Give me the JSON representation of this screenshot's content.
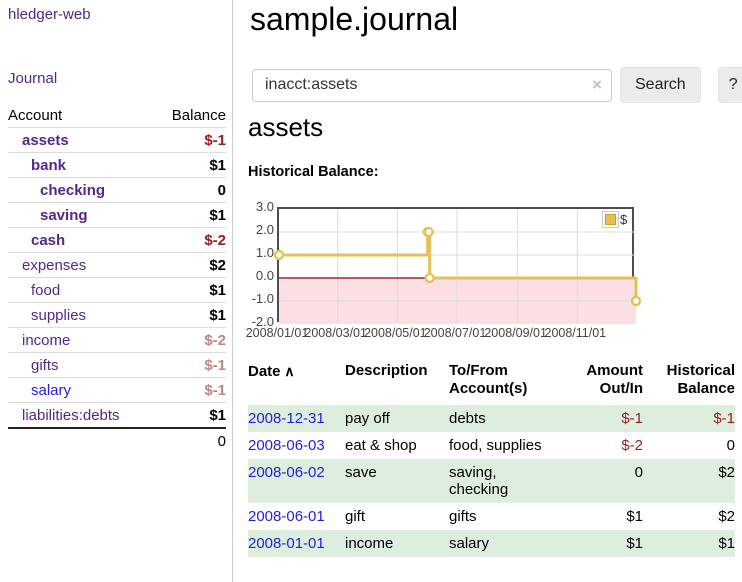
{
  "app": {
    "title": "hledger-web"
  },
  "sidebar": {
    "journal_link": "Journal",
    "accounts_table": {
      "headers": {
        "account": "Account",
        "balance": "Balance"
      },
      "rows": [
        {
          "name": "assets",
          "indent": 1,
          "bold": true,
          "link_color": "purple",
          "balance": "$-1",
          "balance_style": "neg-strong"
        },
        {
          "name": "bank",
          "indent": 2,
          "bold": true,
          "link_color": "purple",
          "balance": "$1",
          "balance_style": "normal"
        },
        {
          "name": "checking",
          "indent": 3,
          "bold": true,
          "link_color": "purple",
          "balance": "0",
          "balance_style": "normal"
        },
        {
          "name": "saving",
          "indent": 3,
          "bold": true,
          "link_color": "purple",
          "balance": "$1",
          "balance_style": "normal"
        },
        {
          "name": "cash",
          "indent": 2,
          "bold": true,
          "link_color": "purple",
          "balance": "$-2",
          "balance_style": "neg-strong"
        },
        {
          "name": "expenses",
          "indent": 1,
          "bold": false,
          "link_color": "purple",
          "balance": "$2",
          "balance_style": "normal"
        },
        {
          "name": "food",
          "indent": 2,
          "bold": false,
          "link_color": "purple",
          "balance": "$1",
          "balance_style": "normal"
        },
        {
          "name": "supplies",
          "indent": 2,
          "bold": false,
          "link_color": "purple",
          "balance": "$1",
          "balance_style": "normal"
        },
        {
          "name": "income",
          "indent": 1,
          "bold": false,
          "link_color": "purple",
          "balance": "$-2",
          "balance_style": "neg-faded"
        },
        {
          "name": "gifts",
          "indent": 2,
          "bold": false,
          "link_color": "purple",
          "balance": "$-1",
          "balance_style": "neg-faded"
        },
        {
          "name": "salary",
          "indent": 2,
          "bold": false,
          "link_color": "blue",
          "balance": "$-1",
          "balance_style": "neg-faded"
        },
        {
          "name": "liabilities:debts",
          "indent": 1,
          "bold": false,
          "link_color": "purple",
          "balance": "$1",
          "balance_style": "normal"
        }
      ],
      "total": "0"
    }
  },
  "header": {
    "title": "sample.journal"
  },
  "search": {
    "value": "inacct:assets",
    "clear_icon": "×",
    "button_label": "Search",
    "help_label": "?"
  },
  "account_page": {
    "heading": "assets",
    "chart_label": "Historical Balance:"
  },
  "chart_data": {
    "type": "line",
    "style": "step",
    "series": [
      {
        "name": "$",
        "color": "#e6c054",
        "points": [
          [
            "2008-01-01",
            1
          ],
          [
            "2008-06-01",
            2
          ],
          [
            "2008-06-02",
            2
          ],
          [
            "2008-06-03",
            0
          ],
          [
            "2008-12-31",
            -1
          ]
        ]
      }
    ],
    "ylim": [
      -2.0,
      3.0
    ],
    "yticks": [
      "3.0",
      "2.0",
      "1.0",
      "0.0",
      "-1.0",
      "-2.0"
    ],
    "xticks": [
      "2008/01/01",
      "2008/03/01",
      "2008/05/01",
      "2008/07/01",
      "2008/09/01",
      "2008/11/01"
    ],
    "xrange": [
      "2008-01-01",
      "2008-12-31"
    ],
    "legend": {
      "label": "$",
      "position": "top-right"
    },
    "grid": true,
    "negative_region_color": "#fbdfe2",
    "zero_line_color": "#8b0000",
    "grid_color": "#dcdcdc",
    "marker": "open-circle"
  },
  "transactions": {
    "sort_icon": "∧",
    "columns": [
      {
        "label": "Date",
        "align": "left",
        "sorted": "asc"
      },
      {
        "label": "Description",
        "align": "left"
      },
      {
        "label": "To/From Account(s)",
        "align": "left"
      },
      {
        "label": "Amount Out/In",
        "align": "right"
      },
      {
        "label": "Historical Balance",
        "align": "right"
      }
    ],
    "rows": [
      {
        "date": "2008-12-31",
        "description": "pay off",
        "accounts": "debts",
        "amount": "$-1",
        "amount_style": "neg-strong",
        "balance": "$-1",
        "balance_style": "neg-strong"
      },
      {
        "date": "2008-06-03",
        "description": "eat & shop",
        "accounts": "food, supplies",
        "amount": "$-2",
        "amount_style": "neg-strong",
        "balance": "0",
        "balance_style": "normal"
      },
      {
        "date": "2008-06-02",
        "description": "save",
        "accounts": "saving, checking",
        "amount": "0",
        "amount_style": "normal",
        "balance": "$2",
        "balance_style": "normal"
      },
      {
        "date": "2008-06-01",
        "description": "gift",
        "accounts": "gifts",
        "amount": "$1",
        "amount_style": "normal",
        "balance": "$2",
        "balance_style": "normal"
      },
      {
        "date": "2008-01-01",
        "description": "income",
        "accounts": "salary",
        "amount": "$1",
        "amount_style": "normal",
        "balance": "$1",
        "balance_style": "normal"
      }
    ]
  }
}
